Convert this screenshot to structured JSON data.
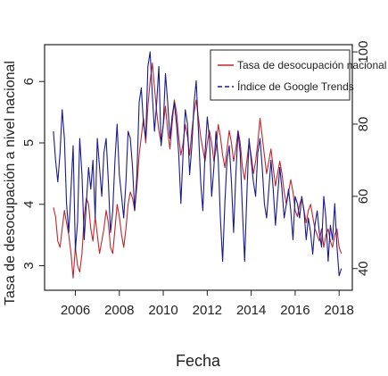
{
  "chart_data": {
    "type": "line",
    "xlabel": "Fecha",
    "ylabel_left": "Tasa de desocupación a nivel nacional",
    "ylabel_right": "",
    "x_ticks": [
      "2006",
      "2008",
      "2010",
      "2012",
      "2014",
      "2016",
      "2018"
    ],
    "y_left_ticks": [
      "3",
      "4",
      "5",
      "6"
    ],
    "y_right_ticks": [
      "40",
      "60",
      "80",
      "100"
    ],
    "xlim": [
      2004.6,
      2018.6
    ],
    "ylim_left": [
      2.6,
      6.6
    ],
    "ylim_right": [
      34,
      102
    ],
    "legend_position": "top-right",
    "series": [
      {
        "name": "Tasa de desocupación nacional",
        "axis": "left",
        "color": "#c0272d",
        "line_style": "solid",
        "x": [
          2005.0,
          2005.1,
          2005.2,
          2005.3,
          2005.4,
          2005.5,
          2005.6,
          2005.7,
          2005.8,
          2005.9,
          2006.0,
          2006.1,
          2006.2,
          2006.3,
          2006.4,
          2006.5,
          2006.6,
          2006.7,
          2006.8,
          2006.9,
          2007.0,
          2007.1,
          2007.2,
          2007.3,
          2007.4,
          2007.5,
          2007.6,
          2007.7,
          2007.8,
          2007.9,
          2008.0,
          2008.1,
          2008.2,
          2008.3,
          2008.4,
          2008.5,
          2008.6,
          2008.7,
          2008.8,
          2008.9,
          2009.0,
          2009.1,
          2009.2,
          2009.3,
          2009.4,
          2009.5,
          2009.6,
          2009.7,
          2009.8,
          2009.9,
          2010.0,
          2010.1,
          2010.2,
          2010.3,
          2010.4,
          2010.5,
          2010.6,
          2010.7,
          2010.8,
          2010.9,
          2011.0,
          2011.1,
          2011.2,
          2011.3,
          2011.4,
          2011.5,
          2011.6,
          2011.7,
          2011.8,
          2011.9,
          2012.0,
          2012.1,
          2012.2,
          2012.3,
          2012.4,
          2012.5,
          2012.6,
          2012.7,
          2012.8,
          2012.9,
          2013.0,
          2013.1,
          2013.2,
          2013.3,
          2013.4,
          2013.5,
          2013.6,
          2013.7,
          2013.8,
          2013.9,
          2014.0,
          2014.1,
          2014.2,
          2014.3,
          2014.4,
          2014.5,
          2014.6,
          2014.7,
          2014.8,
          2014.9,
          2015.0,
          2015.1,
          2015.2,
          2015.3,
          2015.4,
          2015.5,
          2015.6,
          2015.7,
          2015.8,
          2015.9,
          2016.0,
          2016.1,
          2016.2,
          2016.3,
          2016.4,
          2016.5,
          2016.6,
          2016.7,
          2016.8,
          2016.9,
          2017.0,
          2017.1,
          2017.2,
          2017.3,
          2017.4,
          2017.5,
          2017.6,
          2017.7,
          2017.8,
          2017.9,
          2018.0,
          2018.1
        ],
        "values": [
          3.95,
          3.8,
          3.4,
          3.3,
          3.6,
          3.9,
          3.7,
          3.5,
          3.2,
          2.8,
          3.3,
          3.0,
          2.9,
          3.2,
          3.8,
          4.1,
          4.0,
          3.6,
          3.4,
          3.8,
          3.5,
          3.2,
          3.4,
          3.6,
          3.9,
          3.7,
          3.3,
          3.2,
          3.6,
          4.0,
          3.8,
          3.5,
          3.3,
          3.6,
          4.0,
          4.2,
          4.1,
          3.9,
          4.3,
          4.8,
          5.1,
          5.4,
          5.0,
          5.6,
          6.0,
          6.3,
          5.9,
          5.5,
          5.2,
          5.0,
          5.3,
          5.6,
          5.2,
          4.9,
          5.3,
          5.7,
          5.5,
          5.1,
          4.8,
          5.0,
          5.3,
          5.1,
          4.8,
          5.2,
          5.5,
          5.7,
          5.4,
          5.1,
          4.9,
          4.7,
          5.0,
          5.2,
          5.0,
          4.7,
          4.9,
          5.3,
          5.1,
          4.8,
          4.6,
          4.9,
          5.2,
          5.0,
          4.7,
          4.9,
          5.2,
          5.0,
          4.6,
          4.4,
          4.7,
          5.0,
          4.8,
          4.5,
          4.7,
          5.0,
          5.4,
          5.1,
          4.8,
          4.5,
          4.7,
          4.9,
          4.6,
          4.3,
          4.5,
          4.7,
          4.5,
          4.2,
          4.0,
          4.2,
          4.4,
          4.2,
          3.9,
          3.8,
          4.0,
          4.1,
          3.9,
          3.7,
          3.9,
          4.0,
          3.8,
          3.6,
          3.5,
          3.4,
          3.6,
          3.3,
          3.5,
          3.6,
          3.4,
          3.3,
          3.5,
          3.6,
          3.3,
          3.2
        ]
      },
      {
        "name": "Índice de Google Trends",
        "axis": "right",
        "color": "#1a1a8c",
        "line_style": "dashed",
        "x": [
          2005.0,
          2005.1,
          2005.2,
          2005.3,
          2005.4,
          2005.5,
          2005.6,
          2005.7,
          2005.8,
          2005.9,
          2006.0,
          2006.1,
          2006.2,
          2006.3,
          2006.4,
          2006.5,
          2006.6,
          2006.7,
          2006.8,
          2006.9,
          2007.0,
          2007.1,
          2007.2,
          2007.3,
          2007.4,
          2007.5,
          2007.6,
          2007.7,
          2007.8,
          2007.9,
          2008.0,
          2008.1,
          2008.2,
          2008.3,
          2008.4,
          2008.5,
          2008.6,
          2008.7,
          2008.8,
          2008.9,
          2009.0,
          2009.1,
          2009.2,
          2009.3,
          2009.4,
          2009.5,
          2009.6,
          2009.7,
          2009.8,
          2009.9,
          2010.0,
          2010.1,
          2010.2,
          2010.3,
          2010.4,
          2010.5,
          2010.6,
          2010.7,
          2010.8,
          2010.9,
          2011.0,
          2011.1,
          2011.2,
          2011.3,
          2011.4,
          2011.5,
          2011.6,
          2011.7,
          2011.8,
          2011.9,
          2012.0,
          2012.1,
          2012.2,
          2012.3,
          2012.4,
          2012.5,
          2012.6,
          2012.7,
          2012.8,
          2012.9,
          2013.0,
          2013.1,
          2013.2,
          2013.3,
          2013.4,
          2013.5,
          2013.6,
          2013.7,
          2013.8,
          2013.9,
          2014.0,
          2014.1,
          2014.2,
          2014.3,
          2014.4,
          2014.5,
          2014.6,
          2014.7,
          2014.8,
          2014.9,
          2015.0,
          2015.1,
          2015.2,
          2015.3,
          2015.4,
          2015.5,
          2015.6,
          2015.7,
          2015.8,
          2015.9,
          2016.0,
          2016.1,
          2016.2,
          2016.3,
          2016.4,
          2016.5,
          2016.6,
          2016.7,
          2016.8,
          2016.9,
          2017.0,
          2017.1,
          2017.2,
          2017.3,
          2017.4,
          2017.5,
          2017.6,
          2017.7,
          2017.8,
          2017.9,
          2018.0,
          2018.1
        ],
        "values": [
          78,
          70,
          64,
          72,
          84,
          76,
          58,
          50,
          62,
          74,
          45,
          53,
          76,
          66,
          48,
          58,
          68,
          62,
          70,
          54,
          76,
          68,
          60,
          72,
          76,
          64,
          50,
          56,
          70,
          80,
          66,
          60,
          54,
          64,
          78,
          76,
          68,
          56,
          66,
          86,
          90,
          80,
          76,
          96,
          100,
          88,
          78,
          86,
          96,
          74,
          80,
          94,
          86,
          76,
          82,
          86,
          80,
          72,
          58,
          72,
          84,
          80,
          66,
          74,
          86,
          92,
          78,
          64,
          56,
          72,
          82,
          76,
          60,
          68,
          78,
          70,
          54,
          42,
          58,
          70,
          74,
          64,
          50,
          66,
          78,
          72,
          56,
          42,
          60,
          76,
          70,
          64,
          60,
          72,
          76,
          68,
          58,
          54,
          62,
          70,
          62,
          52,
          60,
          68,
          62,
          54,
          58,
          62,
          56,
          48,
          60,
          58,
          54,
          60,
          56,
          48,
          54,
          50,
          44,
          52,
          56,
          50,
          46,
          60,
          54,
          42,
          52,
          48,
          58,
          46,
          38,
          40
        ]
      }
    ]
  }
}
